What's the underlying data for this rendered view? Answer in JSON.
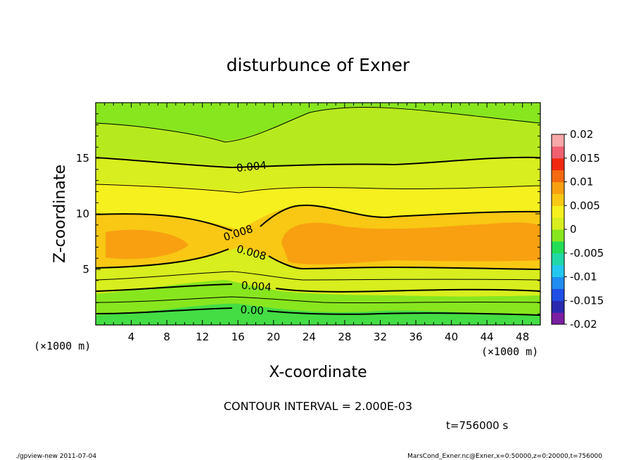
{
  "chart_data": {
    "type": "heatmap",
    "title": "disturbunce of Exner",
    "xlabel": "X-coordinate",
    "ylabel": "Z-coordinate",
    "x_unit": "(×1000 m)",
    "y_unit": "(×1000 m)",
    "xlim": [
      0,
      50
    ],
    "ylim": [
      0,
      20
    ],
    "x_ticks": [
      4,
      8,
      12,
      16,
      20,
      24,
      28,
      32,
      36,
      40,
      44,
      48
    ],
    "y_ticks": [
      5,
      10,
      15
    ],
    "colorbar": {
      "range": [
        -0.02,
        0.02
      ],
      "tick_labels": [
        "0.02",
        "0.015",
        "0.01",
        "0.005",
        "0",
        "-0.005",
        "-0.01",
        "-0.015",
        "-0.02"
      ],
      "colors": [
        "#7a1fa2",
        "#2a2ab0",
        "#1f4fe6",
        "#1f8cf2",
        "#22c8f0",
        "#22d8a8",
        "#22dd55",
        "#88e61e",
        "#d8ee1e",
        "#f6f01e",
        "#f8c814",
        "#f8a010",
        "#f46a10",
        "#f02810",
        "#f06070",
        "#f8a8a8"
      ]
    },
    "contour_labels": [
      "0.004",
      "0.008",
      "0.008",
      "0.004",
      "0.00"
    ],
    "contour_interval_text": "CONTOUR INTERVAL = 2.000E-03",
    "time_text": "t=756000 s"
  },
  "footer": {
    "left": "./gpview-new   2011-07-04",
    "right": "MarsCond_Exner.nc@Exner,x=0:50000,z=0:20000,t=756000"
  }
}
